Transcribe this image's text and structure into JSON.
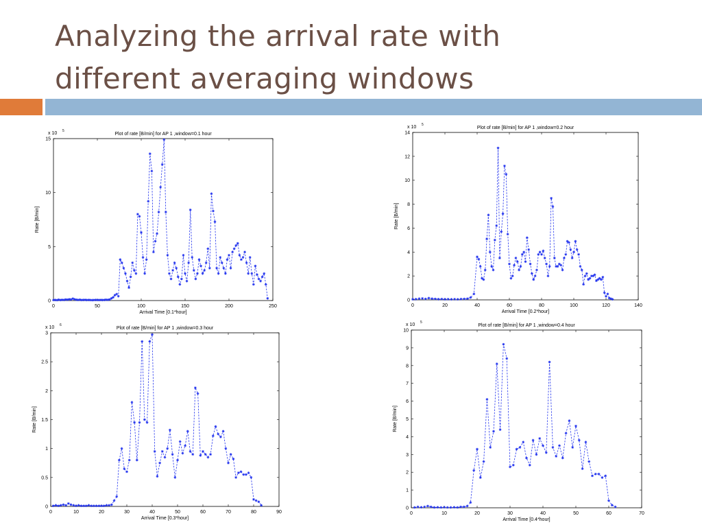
{
  "slide": {
    "title_line1": "Analyzing the arrival rate with",
    "title_line2": "different averaging windows",
    "accent_colors": {
      "orange": "#e07b39",
      "blue": "#93b5d4"
    }
  },
  "chart_data": [
    {
      "type": "line",
      "title": "Plot of rate [B/min] for AP 1 ,window=0.1 hour",
      "xlabel": "Arrival Time [0.1*hour]",
      "ylabel": "Rate [B/min]",
      "multiplier_label": "x 10",
      "multiplier_exp": "5",
      "xlim": [
        0,
        250
      ],
      "ylim": [
        0,
        15
      ],
      "xticks": [
        0,
        50,
        100,
        150,
        200,
        250
      ],
      "yticks": [
        0,
        5,
        10,
        15
      ],
      "marker": "star",
      "line_style": "dashed",
      "color": "#2233ee",
      "x": [
        0,
        2,
        4,
        6,
        8,
        10,
        12,
        14,
        16,
        18,
        20,
        22,
        24,
        26,
        28,
        30,
        32,
        34,
        36,
        38,
        40,
        42,
        44,
        46,
        48,
        50,
        52,
        54,
        56,
        58,
        60,
        62,
        64,
        66,
        68,
        70,
        72,
        74,
        76,
        78,
        80,
        82,
        84,
        86,
        88,
        90,
        92,
        94,
        96,
        98,
        100,
        102,
        104,
        106,
        108,
        110,
        112,
        114,
        116,
        118,
        120,
        122,
        124,
        126,
        128,
        130,
        132,
        134,
        136,
        138,
        140,
        142,
        144,
        146,
        148,
        150,
        152,
        154,
        156,
        158,
        160,
        162,
        164,
        166,
        168,
        170,
        172,
        174,
        176,
        178,
        180,
        182,
        184,
        186,
        188,
        190,
        192,
        194,
        196,
        198,
        200,
        202,
        204,
        206,
        208,
        210,
        212,
        214,
        216,
        218,
        220,
        222,
        224,
        226,
        228,
        230,
        232,
        234,
        236,
        238,
        240,
        242,
        244
      ],
      "values": [
        0.05,
        0.06,
        0.04,
        0.08,
        0.05,
        0.07,
        0.06,
        0.1,
        0.08,
        0.12,
        0.1,
        0.18,
        0.12,
        0.08,
        0.06,
        0.08,
        0.05,
        0.06,
        0.07,
        0.05,
        0.06,
        0.05,
        0.04,
        0.05,
        0.06,
        0.05,
        0.05,
        0.06,
        0.05,
        0.06,
        0.08,
        0.07,
        0.1,
        0.2,
        0.3,
        0.5,
        0.6,
        0.4,
        3.8,
        3.5,
        3.0,
        2.5,
        1.8,
        1.2,
        2.2,
        3.5,
        2.8,
        2.5,
        8.0,
        7.8,
        6.3,
        4.0,
        2.5,
        3.8,
        9.2,
        13.6,
        12.0,
        4.5,
        5.5,
        6.2,
        8.2,
        10.5,
        12.6,
        14.9,
        8.2,
        4.2,
        2.5,
        2.0,
        2.8,
        3.5,
        3.0,
        2.2,
        1.5,
        2.0,
        4.2,
        2.5,
        1.8,
        3.5,
        8.4,
        4.0,
        2.8,
        2.0,
        2.5,
        3.8,
        3.2,
        2.5,
        2.8,
        3.5,
        4.8,
        3.0,
        9.9,
        8.3,
        7.3,
        3.0,
        2.5,
        4.0,
        3.5,
        3.0,
        2.5,
        3.8,
        4.2,
        3.0,
        4.5,
        4.8,
        5.1,
        5.3,
        4.2,
        3.8,
        4.0,
        4.5,
        3.5,
        2.5,
        4.0,
        2.5,
        1.5,
        3.2,
        2.4,
        2.0,
        1.8,
        2.2,
        2.5,
        1.5,
        0.2
      ]
    },
    {
      "type": "line",
      "title": "Plot of rate [B/min] for AP 1 ,window=0.2 hour",
      "xlabel": "Arrival Time [0.2*hour]",
      "ylabel": "Rate [B/min]",
      "multiplier_label": "x 10",
      "multiplier_exp": "5",
      "xlim": [
        0,
        140
      ],
      "ylim": [
        0,
        14
      ],
      "xticks": [
        0,
        20,
        40,
        60,
        80,
        100,
        120,
        140
      ],
      "yticks": [
        0,
        2,
        4,
        6,
        8,
        10,
        12,
        14
      ],
      "marker": "star",
      "line_style": "dashed",
      "color": "#2233ee",
      "x": [
        0,
        2,
        4,
        6,
        8,
        10,
        12,
        14,
        16,
        18,
        20,
        22,
        24,
        26,
        28,
        30,
        32,
        34,
        36,
        38,
        40,
        41,
        42,
        43,
        44,
        45,
        46,
        47,
        48,
        49,
        50,
        51,
        52,
        53,
        54,
        55,
        56,
        57,
        58,
        59,
        60,
        61,
        62,
        63,
        64,
        65,
        66,
        67,
        68,
        69,
        70,
        71,
        72,
        73,
        74,
        75,
        76,
        77,
        78,
        79,
        80,
        81,
        82,
        83,
        84,
        85,
        86,
        87,
        88,
        89,
        90,
        91,
        92,
        93,
        94,
        95,
        96,
        97,
        98,
        99,
        100,
        101,
        102,
        103,
        104,
        105,
        106,
        107,
        108,
        109,
        110,
        111,
        112,
        113,
        114,
        115,
        116,
        117,
        118,
        119,
        120,
        121,
        122,
        123,
        124
      ],
      "values": [
        0.05,
        0.06,
        0.1,
        0.12,
        0.08,
        0.15,
        0.1,
        0.08,
        0.06,
        0.07,
        0.05,
        0.06,
        0.05,
        0.06,
        0.05,
        0.07,
        0.08,
        0.1,
        0.2,
        0.5,
        3.6,
        3.4,
        2.8,
        1.8,
        1.7,
        2.5,
        5.1,
        7.1,
        4.0,
        2.8,
        2.5,
        5.0,
        6.2,
        12.7,
        3.5,
        5.7,
        7.2,
        11.2,
        10.5,
        5.5,
        3.0,
        1.8,
        2.0,
        2.9,
        3.5,
        3.2,
        2.5,
        2.8,
        3.8,
        4.0,
        3.2,
        5.2,
        4.2,
        3.0,
        2.2,
        1.7,
        2.0,
        2.5,
        3.8,
        4.0,
        3.8,
        4.1,
        3.5,
        3.0,
        2.0,
        2.8,
        8.5,
        7.8,
        3.5,
        2.8,
        2.8,
        3.0,
        2.9,
        2.5,
        3.5,
        3.8,
        4.9,
        4.8,
        4.2,
        3.5,
        4.0,
        4.9,
        4.2,
        3.8,
        2.8,
        2.5,
        1.3,
        2.0,
        2.2,
        1.7,
        1.8,
        2.0,
        2.0,
        2.1,
        1.6,
        1.7,
        1.8,
        1.7,
        1.9,
        0.6,
        0.3,
        0.5,
        0.15,
        0.1,
        0.05
      ]
    },
    {
      "type": "line",
      "title": "Plot of rate [B/min] for AP 1 ,window=0.3 hour",
      "xlabel": "Arrival Time [0.3*hour]",
      "ylabel": "Rate [B/min]",
      "multiplier_label": "x 10",
      "multiplier_exp": "6",
      "xlim": [
        0,
        90
      ],
      "ylim": [
        0,
        3
      ],
      "xticks": [
        0,
        10,
        20,
        30,
        40,
        50,
        60,
        70,
        80,
        90
      ],
      "yticks": [
        0,
        0.5,
        1,
        1.5,
        2,
        2.5,
        3
      ],
      "ytick_labels": [
        "0",
        "0.5",
        "1",
        "1.5",
        "2",
        "2.5",
        "3"
      ],
      "marker": "star",
      "line_style": "dashed",
      "color": "#2233ee",
      "x": [
        1,
        2,
        3,
        4,
        5,
        6,
        7,
        8,
        9,
        10,
        11,
        12,
        13,
        14,
        15,
        16,
        17,
        18,
        19,
        20,
        21,
        22,
        23,
        24,
        25,
        26,
        27,
        28,
        29,
        30,
        31,
        32,
        33,
        34,
        35,
        36,
        37,
        38,
        39,
        40,
        41,
        42,
        43,
        44,
        45,
        46,
        47,
        48,
        49,
        50,
        51,
        52,
        53,
        54,
        55,
        56,
        57,
        58,
        59,
        60,
        61,
        62,
        63,
        64,
        65,
        66,
        67,
        68,
        69,
        70,
        71,
        72,
        73,
        74,
        75,
        76,
        77,
        78,
        79,
        80,
        81,
        82,
        83
      ],
      "values": [
        0.01,
        0.02,
        0.01,
        0.02,
        0.03,
        0.02,
        0.05,
        0.03,
        0.02,
        0.01,
        0.02,
        0.01,
        0.01,
        0.01,
        0.02,
        0.01,
        0.01,
        0.01,
        0.01,
        0.01,
        0.01,
        0.02,
        0.02,
        0.03,
        0.1,
        0.17,
        0.8,
        1.0,
        0.65,
        0.6,
        0.8,
        1.8,
        1.45,
        0.8,
        1.45,
        2.85,
        1.5,
        1.45,
        2.85,
        2.97,
        0.95,
        0.52,
        0.75,
        0.95,
        0.85,
        1.0,
        1.32,
        0.9,
        0.5,
        0.8,
        1.12,
        0.92,
        1.05,
        1.3,
        0.95,
        0.9,
        2.05,
        1.95,
        0.88,
        0.95,
        0.9,
        0.85,
        0.9,
        1.22,
        1.38,
        1.25,
        1.2,
        1.3,
        1.0,
        0.75,
        0.9,
        0.82,
        0.5,
        0.58,
        0.6,
        0.55,
        0.55,
        0.58,
        0.5,
        0.12,
        0.1,
        0.08,
        0.02
      ]
    },
    {
      "type": "line",
      "title": "Plot of rate [B/min] for AP 1 ,window=0.4 hour",
      "xlabel": "Arrival Time [0.4*hour]",
      "ylabel": "Rate [B/min]",
      "multiplier_label": "x 10",
      "multiplier_exp": "5",
      "xlim": [
        0,
        70
      ],
      "ylim": [
        0,
        10
      ],
      "xticks": [
        0,
        10,
        20,
        30,
        40,
        50,
        60,
        70
      ],
      "yticks": [
        0,
        1,
        2,
        3,
        4,
        5,
        6,
        7,
        8,
        9,
        10
      ],
      "marker": "star",
      "line_style": "dashed",
      "color": "#2233ee",
      "x": [
        1,
        2,
        3,
        4,
        5,
        6,
        7,
        8,
        9,
        10,
        11,
        12,
        13,
        14,
        15,
        16,
        17,
        18,
        19,
        20,
        21,
        22,
        23,
        24,
        25,
        26,
        27,
        28,
        29,
        30,
        31,
        32,
        33,
        34,
        35,
        36,
        37,
        38,
        39,
        40,
        41,
        42,
        43,
        44,
        45,
        46,
        47,
        48,
        49,
        50,
        51,
        52,
        53,
        54,
        55,
        56,
        57,
        58,
        59,
        60,
        61,
        62
      ],
      "values": [
        0.02,
        0.05,
        0.03,
        0.05,
        0.1,
        0.05,
        0.02,
        0.03,
        0.02,
        0.03,
        0.02,
        0.02,
        0.03,
        0.02,
        0.05,
        0.05,
        0.1,
        0.3,
        2.1,
        3.3,
        1.7,
        2.6,
        6.1,
        3.4,
        4.3,
        8.1,
        4.4,
        9.2,
        8.4,
        2.3,
        2.4,
        3.3,
        3.4,
        3.7,
        2.8,
        2.4,
        3.8,
        3.0,
        3.9,
        3.5,
        3.1,
        8.2,
        3.4,
        2.9,
        3.5,
        2.8,
        4.2,
        4.9,
        3.4,
        4.6,
        3.8,
        2.2,
        3.7,
        2.6,
        1.8,
        1.9,
        1.9,
        1.7,
        1.8,
        0.4,
        0.15,
        0.05
      ]
    }
  ]
}
